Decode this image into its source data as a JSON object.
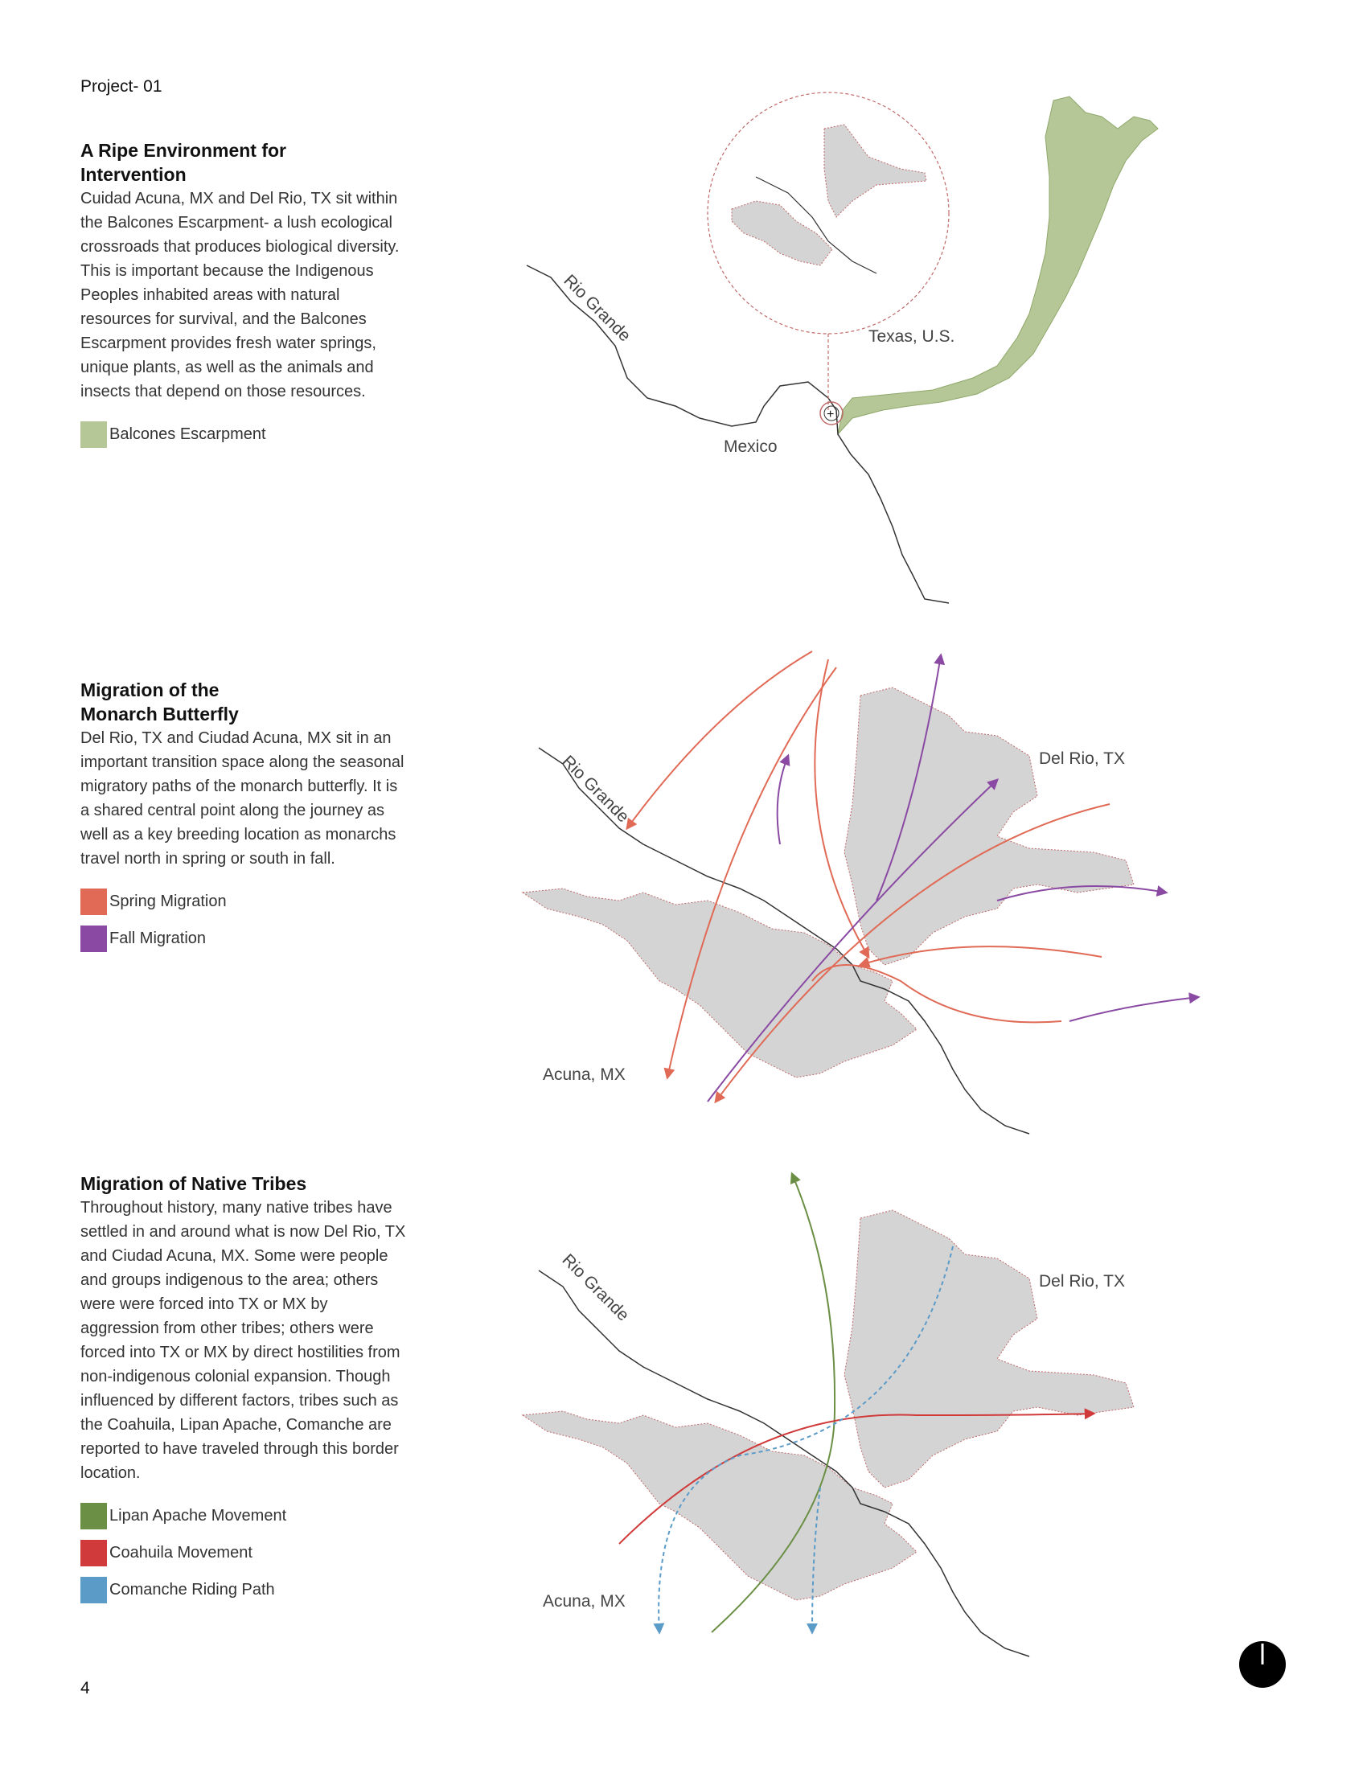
{
  "header": {
    "project_label": "Project- 01"
  },
  "sections": [
    {
      "title": "A Ripe Environment for\nIntervention",
      "body": "Cuidad Acuna, MX and Del Rio, TX sit within the Balcones Escarpment- a lush ecological crossroads that produces biological diversity. This is important because the Indigenous Peoples inhabited areas with natural resources for survival, and the Balcones Escarpment provides fresh water springs, unique plants, as well as the animals and insects that depend on those resources.",
      "legend": [
        {
          "label": "Balcones Escarpment",
          "color": "#b5c797"
        }
      ]
    },
    {
      "title": "Migration of the\nMonarch Butterfly",
      "body": "Del Rio, TX and Ciudad Acuna, MX sit in an important transition space along the seasonal migratory paths of the monarch butterfly. It is a shared central point along the journey as well as a key  breeding location as monarchs travel north in spring or south in fall.",
      "legend": [
        {
          "label": "Spring Migration",
          "color": "#e06a55"
        },
        {
          "label": "Fall Migration",
          "color": "#8a4aa3"
        }
      ]
    },
    {
      "title": "Migration of Native Tribes",
      "body": "Throughout history, many native tribes have settled in and around what is now Del Rio, TX and Ciudad Acuna, MX. Some were people and groups indigenous to the area; others were were forced into TX or MX by aggression from other tribes; others were forced into TX or MX by direct hostilities from non-indigenous colonial expansion. Though influenced by different factors, tribes such as the Coahuila, Lipan Apache, Comanche are reported to have traveled through this border location.",
      "legend": [
        {
          "label": "Lipan Apache Movement",
          "color": "#6b8f45"
        },
        {
          "label": "Coahuila Movement",
          "color": "#d03a3a"
        },
        {
          "label": "Comanche Riding Path",
          "color": "#5b9bc8"
        }
      ]
    }
  ],
  "maps": {
    "map1": {
      "river_label": "Rio Grande",
      "texas_label": "Texas, U.S.",
      "mexico_label": "Mexico"
    },
    "map2": {
      "river_label": "Rio Grande",
      "delrio_label": "Del Rio, TX",
      "acuna_label": "Acuna, MX"
    },
    "map3": {
      "river_label": "Rio Grande",
      "delrio_label": "Del Rio, TX",
      "acuna_label": "Acuna, MX"
    }
  },
  "footer": {
    "page_number": "4"
  },
  "colors": {
    "city": "#d4d4d4",
    "city_outline": "#c06a6a",
    "river": "#333333",
    "escarpment": "#b5c797",
    "spring": "#e06a55",
    "fall": "#8a4aa3",
    "lipan": "#6b8f45",
    "coahuila": "#d03a3a",
    "comanche": "#5b9bc8"
  }
}
